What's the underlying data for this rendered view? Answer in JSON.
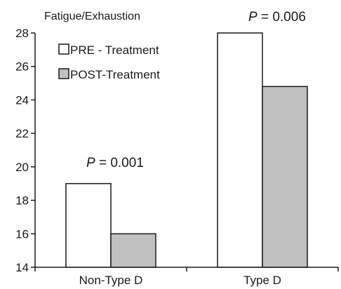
{
  "chart_data": {
    "type": "bar",
    "title": "Fatigue/Exhaustion",
    "xlabel": "",
    "ylabel": "",
    "categories": [
      "Non-Type D",
      "Type D"
    ],
    "series": [
      {
        "name": "PRE - Treatment",
        "values": [
          19.0,
          28.0
        ],
        "color": "#ffffff"
      },
      {
        "name": "POST-Treatment",
        "values": [
          16.0,
          24.8
        ],
        "color": "#c0c0c0"
      }
    ],
    "ylim": [
      14,
      28
    ],
    "yticks": [
      "14",
      "16",
      "18",
      "20",
      "22",
      "24",
      "26",
      "28"
    ],
    "annotations": [
      {
        "category": "Non-Type D",
        "p_symbol": "P",
        "text": " = 0.001"
      },
      {
        "category": "Type D",
        "p_symbol": "P",
        "text": " = 0.006"
      }
    ],
    "legend_position": "top-left",
    "grid": false
  }
}
